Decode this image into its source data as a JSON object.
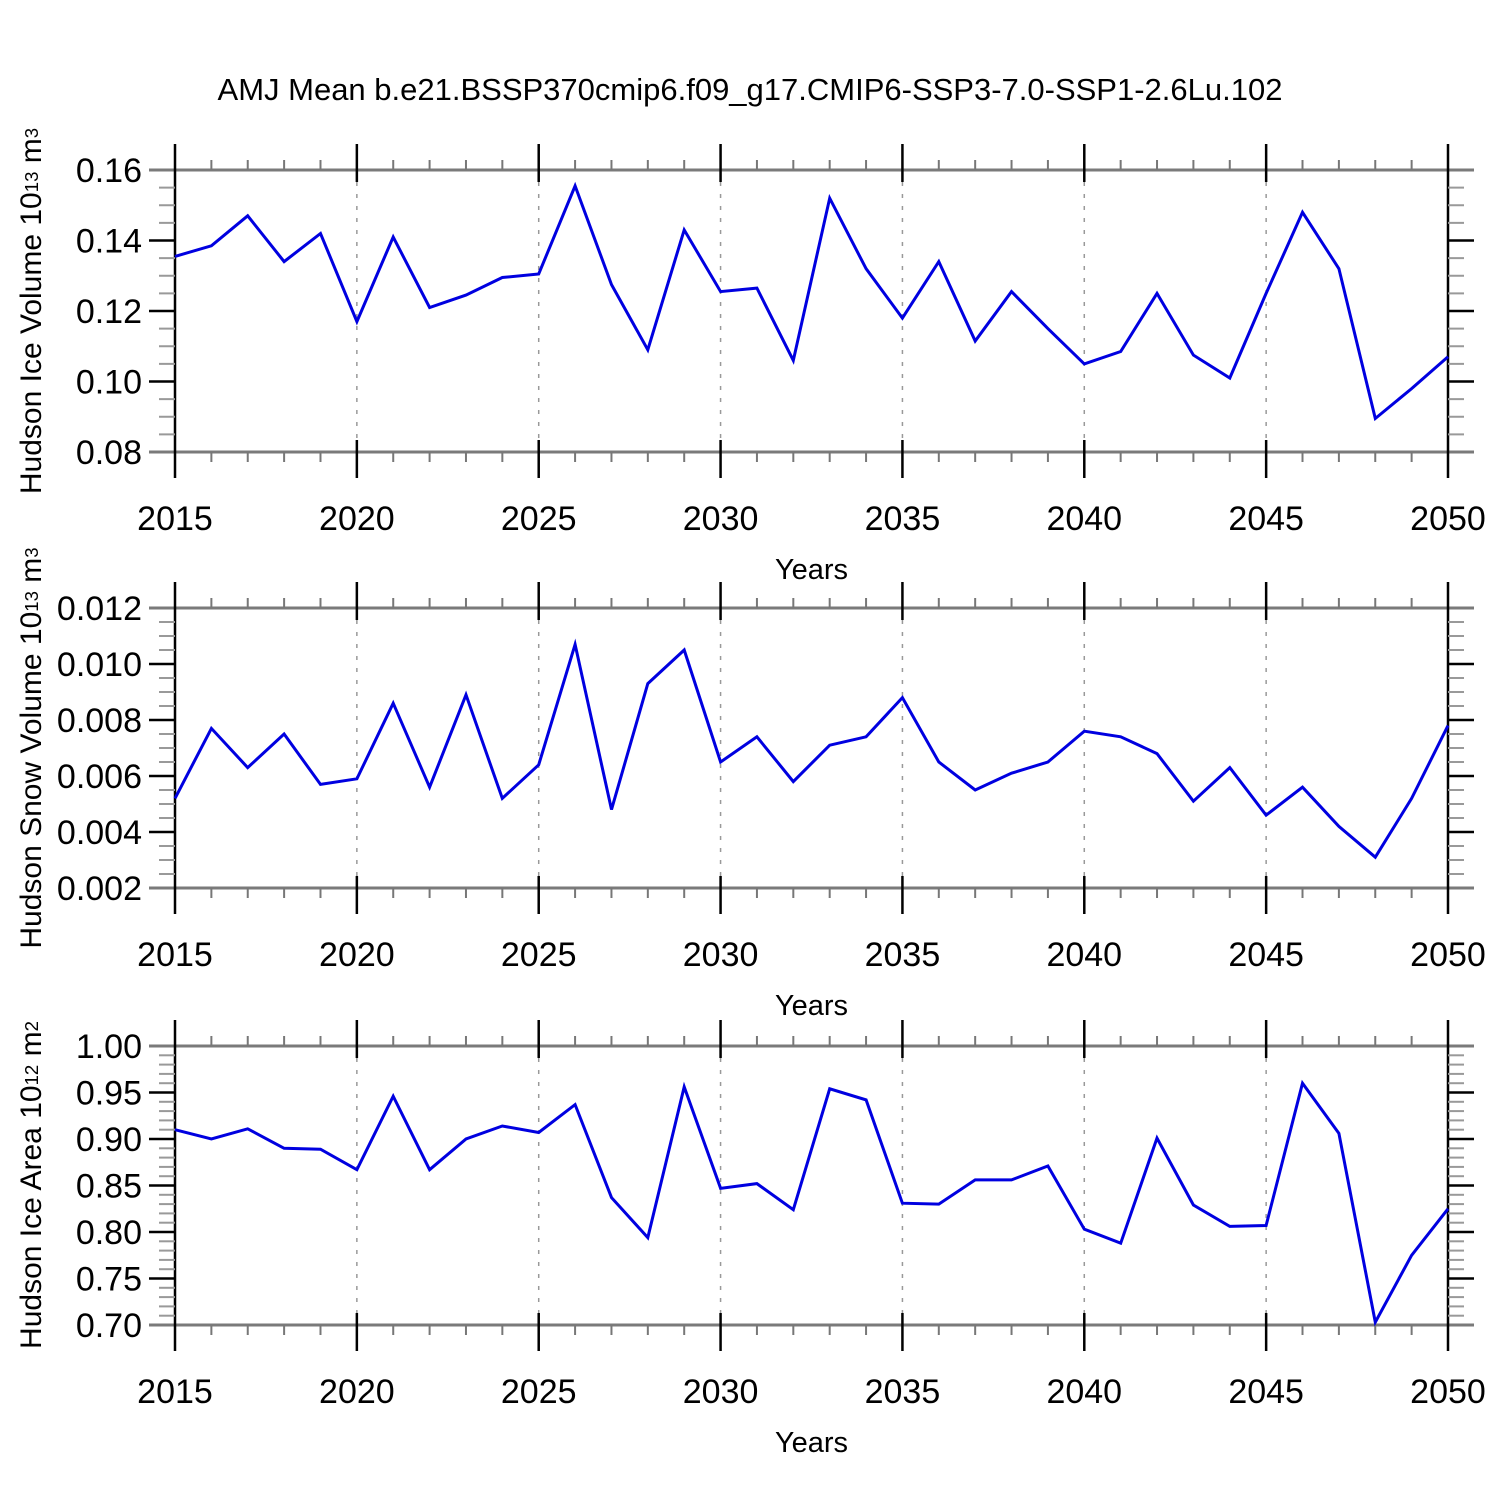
{
  "title": "AMJ Mean b.e21.BSSP370cmip6.f09_g17.CMIP6-SSP3-7.0-SSP1-2.6Lu.102",
  "colors": {
    "line": "#0000e0",
    "frame_gray": "#7a7a7a",
    "grid": "#999999",
    "tick_minor_x": "#777777",
    "tick_minor_y": "#999999",
    "tick_major": "#000000"
  },
  "chart_data": [
    {
      "type": "line",
      "name": "hudson-ice-volume",
      "xlabel": "Years",
      "ylabel": {
        "prefix": "Hudson Ice Volume 10",
        "sup1": "13",
        "mid": " m",
        "sup2": "3"
      },
      "xlim": [
        2015,
        2050
      ],
      "ylim": [
        0.08,
        0.16
      ],
      "xticks": [
        2015,
        2020,
        2025,
        2030,
        2035,
        2040,
        2045,
        2050
      ],
      "xtick_labels": [
        "2015",
        "2020",
        "2025",
        "2030",
        "2035",
        "2040",
        "2045",
        "2050"
      ],
      "x_minor_step": 1,
      "yticks": [
        0.08,
        0.1,
        0.12,
        0.14,
        0.16
      ],
      "ytick_labels": [
        "0.08",
        "0.10",
        "0.12",
        "0.14",
        "0.16"
      ],
      "y_minor_step": 0.005,
      "grid": "vertical-dashed",
      "x": [
        2015,
        2016,
        2017,
        2018,
        2019,
        2020,
        2021,
        2022,
        2023,
        2024,
        2025,
        2026,
        2027,
        2028,
        2029,
        2030,
        2031,
        2032,
        2033,
        2034,
        2035,
        2036,
        2037,
        2038,
        2039,
        2040,
        2041,
        2042,
        2043,
        2044,
        2045,
        2046,
        2047,
        2048,
        2049,
        2050
      ],
      "values": [
        0.1355,
        0.1385,
        0.147,
        0.134,
        0.142,
        0.117,
        0.141,
        0.121,
        0.1245,
        0.1295,
        0.1305,
        0.1555,
        0.1275,
        0.109,
        0.143,
        0.1255,
        0.1265,
        0.106,
        0.152,
        0.132,
        0.118,
        0.134,
        0.1115,
        0.1255,
        0.115,
        0.105,
        0.1085,
        0.125,
        0.1075,
        0.101,
        0.125,
        0.148,
        0.132,
        0.0895,
        0.098,
        0.107
      ]
    },
    {
      "type": "line",
      "name": "hudson-snow-volume",
      "xlabel": "Years",
      "ylabel": {
        "prefix": "Hudson Snow Volume 10",
        "sup1": "13",
        "mid": " m",
        "sup2": "3"
      },
      "xlim": [
        2015,
        2050
      ],
      "ylim": [
        0.002,
        0.012
      ],
      "xticks": [
        2015,
        2020,
        2025,
        2030,
        2035,
        2040,
        2045,
        2050
      ],
      "xtick_labels": [
        "2015",
        "2020",
        "2025",
        "2030",
        "2035",
        "2040",
        "2045",
        "2050"
      ],
      "x_minor_step": 1,
      "yticks": [
        0.002,
        0.004,
        0.006,
        0.008,
        0.01,
        0.012
      ],
      "ytick_labels": [
        "0.002",
        "0.004",
        "0.006",
        "0.008",
        "0.010",
        "0.012"
      ],
      "y_minor_step": 0.0005,
      "grid": "vertical-dashed",
      "x": [
        2015,
        2016,
        2017,
        2018,
        2019,
        2020,
        2021,
        2022,
        2023,
        2024,
        2025,
        2026,
        2027,
        2028,
        2029,
        2030,
        2031,
        2032,
        2033,
        2034,
        2035,
        2036,
        2037,
        2038,
        2039,
        2040,
        2041,
        2042,
        2043,
        2044,
        2045,
        2046,
        2047,
        2048,
        2049,
        2050
      ],
      "values": [
        0.0052,
        0.0077,
        0.0063,
        0.0075,
        0.0057,
        0.0059,
        0.0086,
        0.0056,
        0.0089,
        0.0052,
        0.0064,
        0.0107,
        0.0048,
        0.0093,
        0.0105,
        0.0065,
        0.0074,
        0.0058,
        0.0071,
        0.0074,
        0.0088,
        0.0065,
        0.0055,
        0.0061,
        0.0065,
        0.0076,
        0.0074,
        0.0068,
        0.0051,
        0.0063,
        0.0046,
        0.0056,
        0.0042,
        0.0031,
        0.0052,
        0.0078
      ]
    },
    {
      "type": "line",
      "name": "hudson-ice-area",
      "xlabel": "Years",
      "ylabel": {
        "prefix": "Hudson Ice Area 10",
        "sup1": "12",
        "mid": " m",
        "sup2": "2"
      },
      "xlim": [
        2015,
        2050
      ],
      "ylim": [
        0.7,
        1.0
      ],
      "xticks": [
        2015,
        2020,
        2025,
        2030,
        2035,
        2040,
        2045,
        2050
      ],
      "xtick_labels": [
        "2015",
        "2020",
        "2025",
        "2030",
        "2035",
        "2040",
        "2045",
        "2050"
      ],
      "x_minor_step": 1,
      "yticks": [
        0.7,
        0.75,
        0.8,
        0.85,
        0.9,
        0.95,
        1.0
      ],
      "ytick_labels": [
        "0.70",
        "0.75",
        "0.80",
        "0.85",
        "0.90",
        "0.95",
        "1.00"
      ],
      "y_minor_step": 0.01,
      "grid": "vertical-dashed",
      "x": [
        2015,
        2016,
        2017,
        2018,
        2019,
        2020,
        2021,
        2022,
        2023,
        2024,
        2025,
        2026,
        2027,
        2028,
        2029,
        2030,
        2031,
        2032,
        2033,
        2034,
        2035,
        2036,
        2037,
        2038,
        2039,
        2040,
        2041,
        2042,
        2043,
        2044,
        2045,
        2046,
        2047,
        2048,
        2049,
        2050
      ],
      "values": [
        0.91,
        0.9,
        0.911,
        0.89,
        0.889,
        0.867,
        0.946,
        0.867,
        0.9,
        0.914,
        0.907,
        0.937,
        0.837,
        0.794,
        0.956,
        0.847,
        0.852,
        0.824,
        0.954,
        0.942,
        0.831,
        0.83,
        0.856,
        0.856,
        0.871,
        0.803,
        0.788,
        0.901,
        0.829,
        0.806,
        0.807,
        0.96,
        0.906,
        0.703,
        0.775,
        0.825
      ]
    }
  ]
}
